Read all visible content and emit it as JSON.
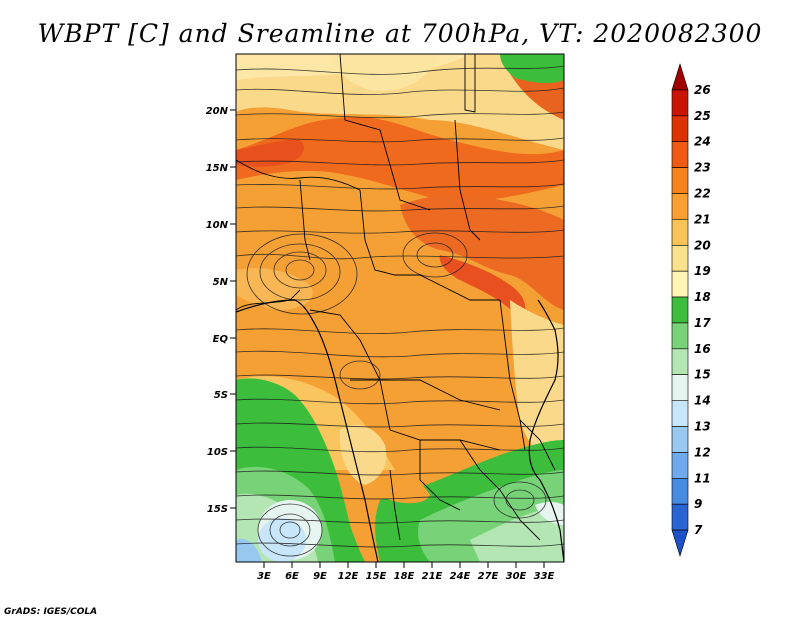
{
  "title": "WBPT [C] and Sreamline at 700hPa, VT: 2020082300",
  "credit": "GrADS: IGES/COLA",
  "map": {
    "lat_ticks": [
      "20N",
      "15N",
      "10N",
      "5N",
      "EQ",
      "5S",
      "10S",
      "15S"
    ],
    "lon_ticks": [
      "3E",
      "6E",
      "9E",
      "12E",
      "15E",
      "18E",
      "21E",
      "24E",
      "27E",
      "30E",
      "33E"
    ],
    "variable": "Wet-bulb potential temperature at 700hPa with streamlines"
  },
  "colorbar": {
    "labels": [
      "26",
      "25",
      "24",
      "23",
      "22",
      "21",
      "20",
      "19",
      "18",
      "17",
      "16",
      "15",
      "14",
      "13",
      "12",
      "11",
      "9",
      "7"
    ],
    "colors": [
      "#a00000",
      "#c81400",
      "#dc3200",
      "#f05a14",
      "#f5821e",
      "#faa032",
      "#fac35a",
      "#fae18c",
      "#fff5b4",
      "#3cbe3c",
      "#78d278",
      "#b4e6b4",
      "#e6f5f0",
      "#c8e6fa",
      "#96c8f0",
      "#6eaaeb",
      "#468ce1",
      "#2864d2",
      "#1e50c8"
    ]
  }
}
